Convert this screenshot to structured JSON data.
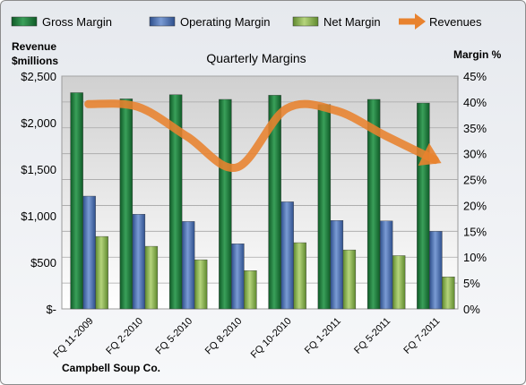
{
  "chart_data": {
    "type": "bar",
    "title": "Quarterly Margins",
    "footer": "Campbell Soup Co.",
    "left_axis_title": [
      "Revenue",
      "$millions"
    ],
    "right_axis_title": "Margin %",
    "categories": [
      "FQ 11-2009",
      "FQ 2-2010",
      "FQ 5-2010",
      "FQ 8-2010",
      "FQ 10-2010",
      "FQ 1-2011",
      "FQ 5-2011",
      "FQ 7-2011"
    ],
    "left_ticks": [
      "$-",
      "$500",
      "$1,000",
      "$1,500",
      "$2,000",
      "$2,500"
    ],
    "right_ticks": [
      "0%",
      "5%",
      "10%",
      "15%",
      "20%",
      "25%",
      "30%",
      "35%",
      "40%",
      "45%"
    ],
    "left_ylim": [
      0,
      2500
    ],
    "right_ylim": [
      0,
      45
    ],
    "grid": true,
    "legend_position": "top",
    "series": [
      {
        "name": "Gross Margin",
        "kind": "bar",
        "axis": "right",
        "color": "#1f7a3a",
        "values": [
          41.8,
          40.6,
          41.4,
          40.5,
          41.3,
          39.5,
          40.5,
          39.8
        ]
      },
      {
        "name": "Operating Margin",
        "kind": "bar",
        "axis": "right",
        "color": "#4f74b5",
        "values": [
          21.8,
          18.3,
          16.9,
          12.6,
          20.7,
          17.1,
          17.0,
          15.0
        ]
      },
      {
        "name": "Net Margin",
        "kind": "bar",
        "axis": "right",
        "color": "#8db552",
        "values": [
          14.0,
          12.1,
          9.5,
          7.4,
          12.8,
          11.4,
          10.3,
          6.2
        ]
      },
      {
        "name": "Revenues",
        "kind": "line",
        "axis": "left",
        "color": "#e8822e",
        "values": [
          2200,
          2170,
          1850,
          1520,
          2150,
          2130,
          1860,
          1600
        ]
      }
    ]
  }
}
